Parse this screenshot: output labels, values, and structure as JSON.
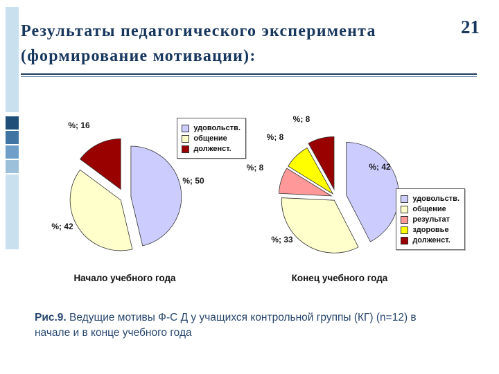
{
  "slide": {
    "page_number": "21",
    "title_line1": "Результаты педагогического эксперимента",
    "title_line2": "(формирование мотивации):",
    "title_color": "#17375e"
  },
  "figure_caption": {
    "label": "Рис.9.",
    "text": "Ведущие мотивы Ф-С Д у учащихся контрольной группы (КГ) (n=12) в начале и в конце учебного года"
  },
  "chart_data": [
    {
      "type": "pie",
      "title": "Начало учебного года",
      "labels": [
        "удовольств.",
        "общение",
        "долженст."
      ],
      "values": [
        50,
        42,
        16
      ],
      "data_labels": [
        "%; 50",
        "%; 42",
        "%; 16"
      ],
      "colors": [
        "#ccccff",
        "#ffffcc",
        "#990000"
      ],
      "legend_position": "right",
      "exploded": true
    },
    {
      "type": "pie",
      "title": "Конец учебного года",
      "labels": [
        "удовольств.",
        "общение",
        "результат",
        "здоровье",
        "долженст."
      ],
      "values": [
        42,
        33,
        8,
        8,
        8
      ],
      "data_labels": [
        "%; 42",
        "%; 33",
        "%; 8",
        "%; 8",
        "%; 8"
      ],
      "colors": [
        "#ccccff",
        "#ffffcc",
        "#ff9999",
        "#ffff00",
        "#990000"
      ],
      "legend_position": "right",
      "exploded": true
    }
  ]
}
